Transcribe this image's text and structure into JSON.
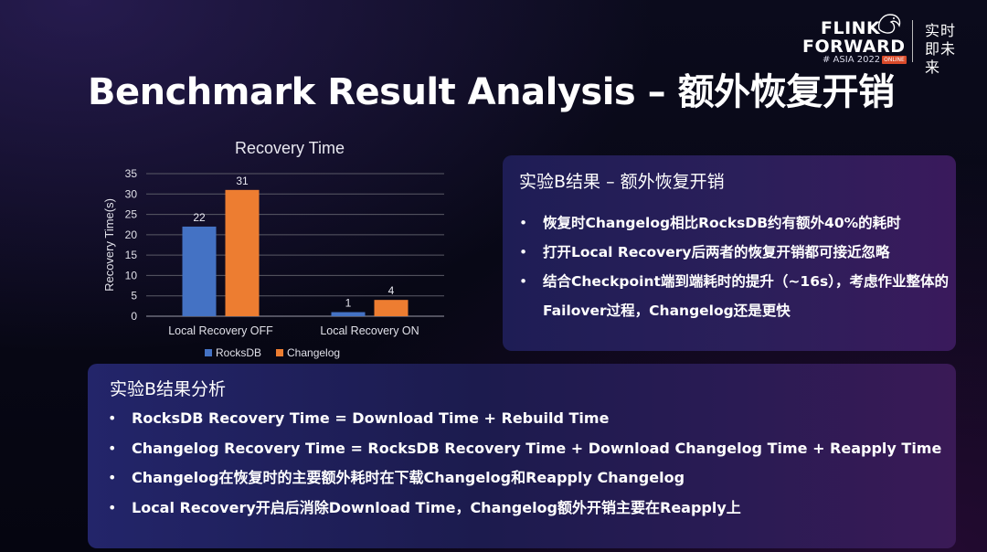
{
  "header": {
    "title": "Benchmark Result Analysis – 额外恢复开销"
  },
  "logo": {
    "line1": "FLINK",
    "line2": "FORWARD",
    "line3": "# ASIA 2022",
    "badge": "ONLINE",
    "slogan": "实时即未来",
    "icon": "squirrel-icon"
  },
  "chart_data": {
    "type": "bar",
    "title": "Recovery Time",
    "xlabel": "",
    "ylabel": "Recovery Time(s)",
    "categories": [
      "Local Recovery OFF",
      "Local Recovery ON"
    ],
    "series": [
      {
        "name": "RocksDB",
        "values": [
          22,
          1
        ],
        "color": "#4472c4"
      },
      {
        "name": "Changelog",
        "values": [
          31,
          4
        ],
        "color": "#ed7d31"
      }
    ],
    "ylim": [
      0,
      35
    ],
    "yticks": [
      0,
      5,
      10,
      15,
      20,
      25,
      30,
      35
    ],
    "grid": true,
    "legend": "bottom"
  },
  "panel_right": {
    "title": "实验B结果 – 额外恢复开销",
    "bullets": [
      "恢复时Changelog相比RocksDB约有额外40%的耗时",
      "打开Local Recovery后两者的恢复开销都可接近忽略",
      "结合Checkpoint端到端耗时的提升（~16s），考虑作业整体的Failover过程，Changelog还是更快"
    ]
  },
  "panel_bottom": {
    "title": "实验B结果分析",
    "bullets": [
      "RocksDB Recovery Time = Download Time + Rebuild Time",
      "Changelog Recovery Time = RocksDB Recovery Time + Download Changelog Time + Reapply Time",
      "Changelog在恢复时的主要额外耗时在下载Changelog和Reapply Changelog",
      "Local Recovery开启后消除Download Time，Changelog额外开销主要在Reapply上"
    ]
  },
  "colors": {
    "background": "#060612",
    "panel_start": "#1e1d55",
    "panel_end": "#3a1a5c",
    "text": "#ffffff"
  }
}
